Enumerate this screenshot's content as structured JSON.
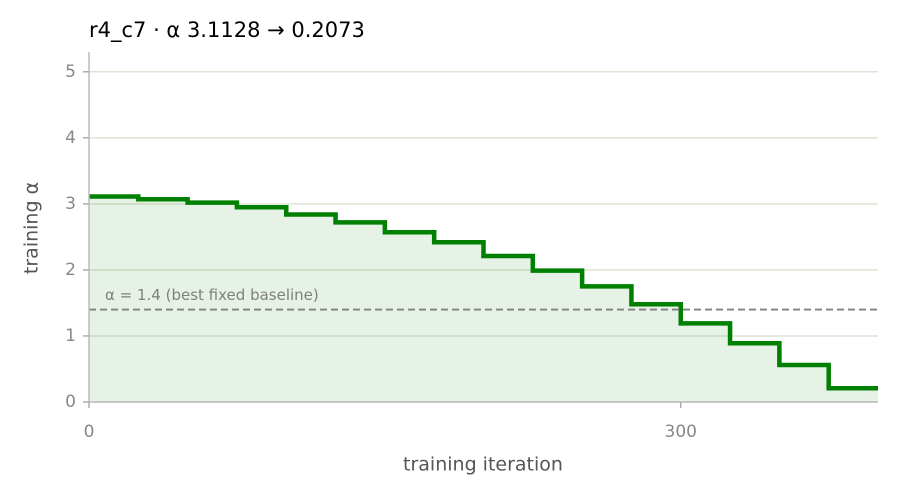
{
  "chart_data": {
    "type": "step",
    "title": "r4_c7   ·   α 3.1128 → 0.2073",
    "x_label": "training iteration",
    "y_label": "training α",
    "x": [
      0,
      25,
      50,
      75,
      100,
      125,
      150,
      175,
      200,
      225,
      250,
      275,
      300,
      325,
      350,
      375
    ],
    "series": [
      {
        "name": "training α",
        "color": "#008000",
        "values": [
          3.1128,
          3.07,
          3.02,
          2.95,
          2.84,
          2.72,
          2.57,
          2.42,
          2.21,
          1.99,
          1.75,
          1.48,
          1.19,
          0.89,
          0.56,
          0.2073
        ]
      }
    ],
    "baseline": {
      "value": 1.4,
      "label": "α = 1.4 (best fixed baseline)",
      "color": "#808080"
    },
    "xlim": [
      0,
      400
    ],
    "ylim": [
      0,
      5.3
    ],
    "xticks": [
      0,
      300
    ],
    "yticks": [
      0,
      1,
      2,
      3,
      4,
      5
    ],
    "grid": true
  }
}
